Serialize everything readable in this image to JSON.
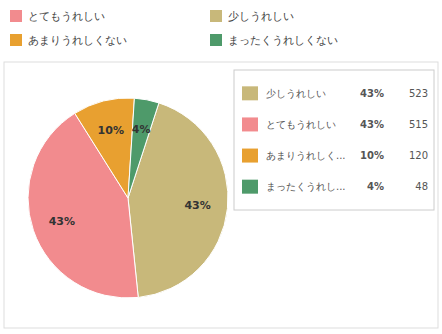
{
  "chart_data": {
    "type": "pie",
    "categories": [
      "少しうれしい",
      "とてもうれしい",
      "あまりうれしく...",
      "まったくうれし..."
    ],
    "values": [
      523,
      515,
      120,
      48
    ],
    "colors": [
      "#c8b87a",
      "#f28b8e",
      "#e8a030",
      "#4e9a6a"
    ],
    "percentages": [
      {
        "value": 43,
        "label": "43%"
      },
      {
        "value": 43,
        "label": "43%"
      },
      {
        "value": 10,
        "label": "10%"
      },
      {
        "value": 4,
        "label": "4%"
      }
    ],
    "legend": "upper right",
    "header_legend": [
      {
        "name": "とてもうれしい",
        "color": "#f28b8e"
      },
      {
        "name": "少しうれしい",
        "color": "#c8b87a"
      },
      {
        "name": "あまりうれしくない",
        "color": "#e8a030"
      },
      {
        "name": "まったくうれしくない",
        "color": "#4e9a6a"
      }
    ]
  }
}
